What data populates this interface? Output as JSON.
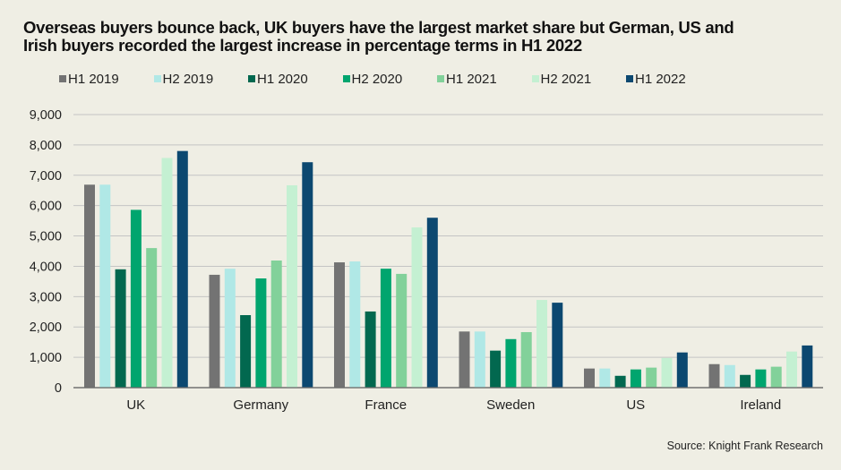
{
  "chart_data": {
    "type": "bar",
    "title": "Overseas buyers bounce back, UK buyers have the largest market share but German, US and Irish buyers recorded the largest increase in percentage terms in H1 2022",
    "xlabel": "",
    "ylabel": "",
    "ylim": [
      0,
      9000
    ],
    "yticks": [
      0,
      1000,
      2000,
      3000,
      4000,
      5000,
      6000,
      7000,
      8000,
      9000
    ],
    "ytick_labels": [
      "0",
      "1,000",
      "2,000",
      "3,000",
      "4,000",
      "5,000",
      "6,000",
      "7,000",
      "8,000",
      "9,000"
    ],
    "grid": true,
    "legend_position": "top",
    "categories": [
      "UK",
      "Germany",
      "France",
      "Sweden",
      "US",
      "Ireland"
    ],
    "series": [
      {
        "name": "H1 2019",
        "color": "#737373",
        "values": [
          6690,
          3720,
          4130,
          1850,
          630,
          775
        ]
      },
      {
        "name": "H2 2019",
        "color": "#b0e8e6",
        "values": [
          6690,
          3920,
          4160,
          1850,
          630,
          745
        ]
      },
      {
        "name": "H1 2020",
        "color": "#02684f",
        "values": [
          3900,
          2390,
          2510,
          1220,
          390,
          420
        ]
      },
      {
        "name": "H2 2020",
        "color": "#00a56e",
        "values": [
          5860,
          3600,
          3920,
          1600,
          600,
          600
        ]
      },
      {
        "name": "H1 2021",
        "color": "#82d19a",
        "values": [
          4600,
          4190,
          3750,
          1830,
          660,
          690
        ]
      },
      {
        "name": "H2 2021",
        "color": "#c4f0d2",
        "values": [
          7570,
          6670,
          5280,
          2890,
          980,
          1190
        ]
      },
      {
        "name": "H1 2022",
        "color": "#0c4870",
        "values": [
          7800,
          7430,
          5600,
          2800,
          1160,
          1390
        ]
      }
    ],
    "source": "Source: Knight Frank Research"
  }
}
